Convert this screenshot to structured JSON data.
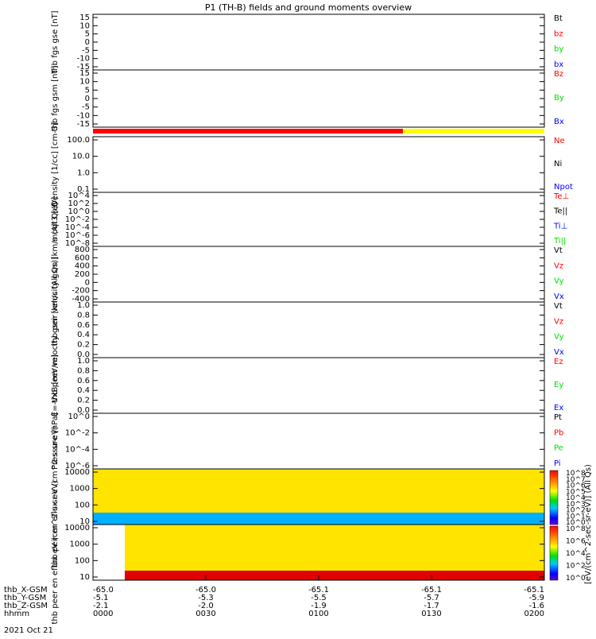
{
  "title": "P1 (TH-B) fields and ground moments overview",
  "date_label": "2021 Oct 21",
  "x_axis": {
    "row_labels": [
      "thb_X-GSM",
      "thb_Y-GSM",
      "thb_Z-GSM",
      "hhmm"
    ],
    "ticks": [
      {
        "values": [
          "-65.0",
          "-5.1",
          "-2.1",
          "0000"
        ]
      },
      {
        "values": [
          "-65.0",
          "-5.3",
          "-2.0",
          "0030"
        ]
      },
      {
        "values": [
          "-65.1",
          "-5.5",
          "-1.9",
          "0100"
        ]
      },
      {
        "values": [
          "-65.1",
          "-5.7",
          "-1.7",
          "0130"
        ]
      },
      {
        "values": [
          "-65.1",
          "-5.9",
          "-1.6",
          "0200"
        ]
      }
    ]
  },
  "colorbar": {
    "label": "[eV/(cm^2-sec-sr-eV)] (All Qs)",
    "upper_ticks": [
      "10^8",
      "10^7",
      "10^6",
      "10^5",
      "10^4",
      "10^3",
      "10^2",
      "10^1",
      "10^0"
    ],
    "lower_ticks": [
      "10^8",
      "10^6",
      "10^4",
      "10^2",
      "10^0"
    ]
  },
  "status_bar": {
    "colors": [
      "#ff0000",
      "#ffff00"
    ],
    "switch_fraction": 0.725
  },
  "colors": {
    "black": "#000000",
    "red": "#ff0000",
    "green": "#00dd00",
    "blue": "#0000ff"
  },
  "chart_data": [
    {
      "type": "line",
      "ylabel": "thb fgs gse [nT]",
      "yticks": [
        "15",
        "10",
        "5",
        "0",
        "-5",
        "-10",
        "-15"
      ],
      "legend": [
        {
          "name": "Bt",
          "color": "#000000"
        },
        {
          "name": "bz",
          "color": "#ff0000"
        },
        {
          "name": "by",
          "color": "#00dd00"
        },
        {
          "name": "bx",
          "color": "#0000ff"
        }
      ]
    },
    {
      "type": "line",
      "ylabel": "thb fgs gsm [nT]",
      "yticks": [
        "15",
        "10",
        "5",
        "0",
        "-5",
        "-10",
        "-15"
      ],
      "legend": [
        {
          "name": "Bz",
          "color": "#ff0000"
        },
        {
          "name": "By",
          "color": "#00dd00"
        },
        {
          "name": "Bx",
          "color": "#0000ff"
        }
      ]
    },
    {
      "type": "line",
      "ylabel": "Density [1/cc] [cm-3]",
      "yticks": [
        "100.0",
        "10.0",
        "1.0",
        "0.1"
      ],
      "legend": [
        {
          "name": "Ne",
          "color": "#ff0000"
        },
        {
          "name": "Ni",
          "color": "#000000"
        },
        {
          "name": "Npot",
          "color": "#0000ff"
        }
      ]
    },
    {
      "type": "line",
      "ylabel": "moqt3 [eV]",
      "yticks": [
        "10^4",
        "10^2",
        "10^0",
        "10^-2",
        "10^-4",
        "10^-6",
        "10^-8"
      ],
      "legend": [
        {
          "name": "Te⊥",
          "color": "#ff0000"
        },
        {
          "name": "Te||",
          "color": "#000000"
        },
        {
          "name": "Ti⊥",
          "color": "#0000ff"
        },
        {
          "name": "Ti||",
          "color": "#00dd00"
        }
      ]
    },
    {
      "type": "line",
      "ylabel": "thb peir velocity gsm [km/s (All Qs)]",
      "yticks": [
        "800",
        "600",
        "400",
        "200",
        "0",
        "-200",
        "-400"
      ],
      "legend": [
        {
          "name": "Vt",
          "color": "#000000"
        },
        {
          "name": "Vz",
          "color": "#ff0000"
        },
        {
          "name": "Vy",
          "color": "#00dd00"
        },
        {
          "name": "Vx",
          "color": "#0000ff"
        }
      ]
    },
    {
      "type": "line",
      "ylabel": "thb peer velocity gsm [km/s (All Qs)]",
      "yticks": [
        "1.0",
        "0.8",
        "0.6",
        "0.4",
        "0.2",
        "0.0"
      ],
      "legend": [
        {
          "name": "Vt",
          "color": "#000000"
        },
        {
          "name": "Vz",
          "color": "#ff0000"
        },
        {
          "name": "Vy",
          "color": "#00dd00"
        },
        {
          "name": "Vx",
          "color": "#0000ff"
        }
      ]
    },
    {
      "type": "line",
      "ylabel": "E=-VxB [mV/m]",
      "yticks": [
        "1.0",
        "0.8",
        "0.6",
        "0.4",
        "0.2",
        "0.0"
      ],
      "legend": [
        {
          "name": "Ez",
          "color": "#ff0000"
        },
        {
          "name": "Ey",
          "color": "#00dd00"
        },
        {
          "name": "Ex",
          "color": "#0000ff"
        }
      ]
    },
    {
      "type": "line",
      "ylabel": "Pressure [nPa]",
      "yticks": [
        "10^0",
        "10^-2",
        "10^-4",
        "10^-6"
      ],
      "legend": [
        {
          "name": "Pt",
          "color": "#000000"
        },
        {
          "name": "Pb",
          "color": "#ff0000"
        },
        {
          "name": "Pe",
          "color": "#00dd00"
        },
        {
          "name": "Pi",
          "color": "#0000ff"
        }
      ]
    },
    {
      "type": "heatmap",
      "ylabel": "thb peir en eflux eV (cm^2-s-sr-eV)",
      "yticks": [
        "10000",
        "1000",
        "100",
        "10"
      ]
    },
    {
      "type": "heatmap",
      "ylabel": "thb peer en eflux eV (cm^2-s-sr-eV)",
      "yticks": [
        "10000",
        "1000",
        "100",
        "10"
      ]
    }
  ]
}
